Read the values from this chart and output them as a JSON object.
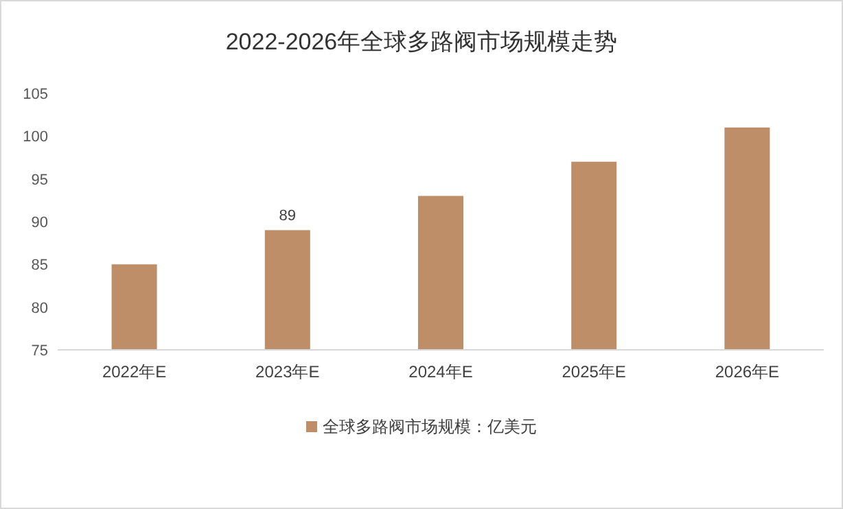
{
  "chart_data": {
    "type": "bar",
    "title": "2022-2026年全球多路阀市场规模走势",
    "categories": [
      "2022年E",
      "2023年E",
      "2024年E",
      "2025年E",
      "2026年E"
    ],
    "series": [
      {
        "name": "全球多路阀市场规模：亿美元",
        "color": "#be8e69",
        "values": [
          85,
          89,
          93,
          97,
          101
        ],
        "value_labels": [
          null,
          "89",
          null,
          null,
          null
        ]
      }
    ],
    "ylim": [
      75,
      105
    ],
    "yticks": [
      75,
      80,
      85,
      90,
      95,
      100,
      105
    ],
    "legend": "bottom"
  }
}
